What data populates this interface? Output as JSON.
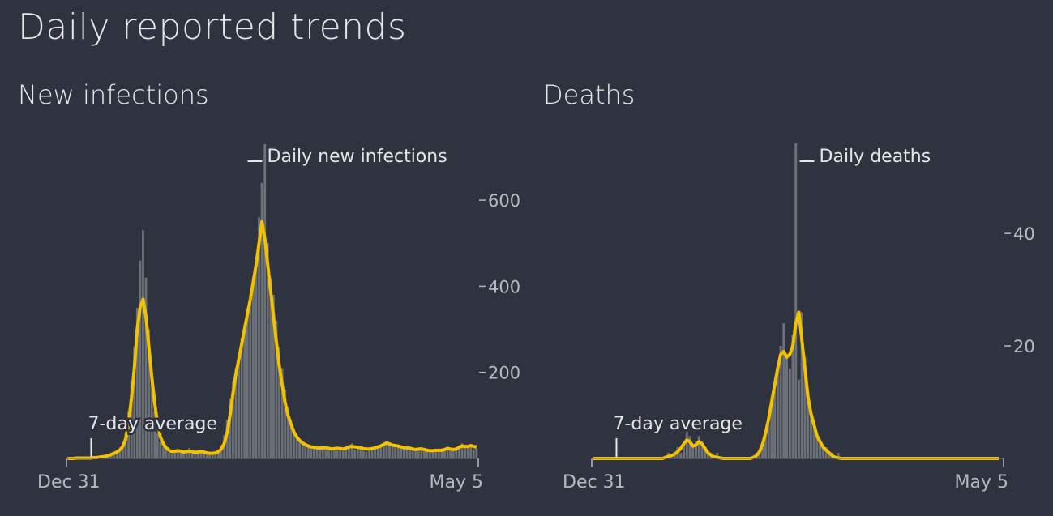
{
  "page": {
    "title": "Daily reported trends"
  },
  "colors": {
    "background": "#2e333f",
    "bars": "#6c7178",
    "average_line": "#f2c100",
    "text": "#e6e6e6",
    "axis_text": "#b7bac0"
  },
  "chart_data": [
    {
      "type": "bar",
      "title": "New infections",
      "x_start_label": "Dec 31",
      "x_end_label": "May 5",
      "yticks": [
        200,
        400,
        600
      ],
      "ylim": [
        0,
        745
      ],
      "bar_series_label": "Daily new infections",
      "average_label": "7-day average",
      "series": [
        {
          "name": "Daily new infections",
          "values": [
            0,
            1,
            0,
            0,
            2,
            1,
            0,
            3,
            1,
            2,
            0,
            5,
            4,
            8,
            6,
            10,
            12,
            15,
            22,
            30,
            60,
            110,
            180,
            260,
            350,
            460,
            530,
            420,
            300,
            180,
            110,
            60,
            40,
            28,
            20,
            14,
            10,
            18,
            22,
            15,
            10,
            18,
            24,
            16,
            12,
            15,
            20,
            14,
            10,
            12,
            8,
            14,
            20,
            30,
            55,
            90,
            140,
            180,
            210,
            240,
            280,
            310,
            350,
            380,
            420,
            470,
            560,
            640,
            730,
            500,
            420,
            380,
            320,
            260,
            210,
            160,
            120,
            90,
            70,
            55,
            45,
            36,
            30,
            28,
            24,
            26,
            22,
            20,
            25,
            28,
            22,
            18,
            22,
            26,
            20,
            18,
            22,
            30,
            35,
            20,
            25,
            22,
            18,
            16,
            20,
            22,
            26,
            30,
            28,
            35,
            40,
            32,
            28,
            34,
            30,
            25,
            22,
            28,
            24,
            20,
            18,
            22,
            26,
            20,
            16,
            14,
            18,
            22,
            20,
            16,
            24,
            28,
            20,
            18,
            22,
            30,
            35,
            26,
            28,
            32,
            22,
            24
          ]
        },
        {
          "name": "7-day average",
          "values": [
            0,
            0,
            0,
            1,
            1,
            1,
            1,
            1,
            1,
            2,
            2,
            3,
            4,
            5,
            7,
            9,
            12,
            15,
            20,
            28,
            45,
            80,
            140,
            210,
            300,
            350,
            370,
            330,
            260,
            190,
            130,
            80,
            50,
            34,
            25,
            19,
            16,
            17,
            18,
            17,
            15,
            16,
            17,
            16,
            14,
            15,
            16,
            15,
            13,
            12,
            12,
            13,
            16,
            22,
            35,
            60,
            100,
            150,
            195,
            230,
            265,
            300,
            335,
            370,
            410,
            450,
            500,
            550,
            510,
            450,
            390,
            330,
            270,
            215,
            170,
            130,
            100,
            80,
            62,
            50,
            42,
            36,
            32,
            29,
            27,
            26,
            25,
            24,
            25,
            25,
            24,
            22,
            23,
            24,
            23,
            22,
            24,
            27,
            28,
            27,
            26,
            25,
            23,
            22,
            22,
            23,
            25,
            27,
            29,
            33,
            36,
            34,
            31,
            30,
            29,
            27,
            25,
            25,
            24,
            22,
            21,
            22,
            22,
            21,
            19,
            18,
            18,
            19,
            19,
            19,
            21,
            23,
            22,
            21,
            22,
            26,
            29,
            28,
            28,
            30,
            28,
            27
          ]
        }
      ]
    },
    {
      "type": "bar",
      "title": "Deaths",
      "x_start_label": "Dec 31",
      "x_end_label": "May 5",
      "yticks": [
        20,
        40
      ],
      "ylim": [
        0,
        57
      ],
      "bar_series_label": "Daily deaths",
      "average_label": "7-day average",
      "series": [
        {
          "name": "Daily deaths",
          "values": [
            0,
            0,
            0,
            0,
            0,
            0,
            0,
            0,
            0,
            0,
            0,
            0,
            0,
            0,
            0,
            0,
            0,
            0,
            0,
            0,
            0,
            0,
            0,
            0,
            0,
            1,
            0,
            1,
            2,
            1,
            3,
            5,
            4,
            2,
            3,
            4,
            3,
            2,
            1,
            1,
            0,
            1,
            0,
            0,
            0,
            0,
            0,
            0,
            0,
            0,
            0,
            0,
            0,
            0,
            1,
            1,
            2,
            4,
            6,
            9,
            12,
            16,
            20,
            24,
            18,
            16,
            22,
            56,
            14,
            26,
            18,
            12,
            8,
            6,
            4,
            3,
            2,
            2,
            1,
            1,
            0,
            1,
            0,
            0,
            0,
            0,
            0,
            0,
            0,
            0,
            0,
            0,
            0,
            0,
            0,
            0,
            0,
            0,
            0,
            0,
            0,
            0,
            0,
            0,
            0,
            0,
            0,
            0,
            0,
            0,
            0,
            0,
            0,
            0,
            0,
            0,
            0,
            0,
            0,
            0,
            0,
            0,
            0,
            0,
            0,
            0,
            0,
            0,
            0,
            0,
            0,
            0,
            0,
            0,
            0,
            0
          ]
        },
        {
          "name": "7-day average",
          "values": [
            0,
            0,
            0,
            0,
            0,
            0,
            0,
            0,
            0,
            0,
            0,
            0,
            0,
            0,
            0,
            0,
            0,
            0,
            0,
            0,
            0,
            0,
            0,
            0,
            0.2,
            0.4,
            0.5,
            0.8,
            1.2,
            1.8,
            2.6,
            3.3,
            3.0,
            2.2,
            2.4,
            3.0,
            2.6,
            1.8,
            1.0,
            0.6,
            0.3,
            0.2,
            0.1,
            0,
            0,
            0,
            0,
            0,
            0,
            0,
            0,
            0,
            0,
            0.2,
            0.5,
            1.2,
            2.5,
            4.5,
            7,
            10,
            13,
            16,
            18.5,
            19,
            18,
            18.5,
            20,
            24,
            26,
            21,
            16,
            11,
            8,
            6,
            4,
            3,
            2,
            1.5,
            1,
            0.5,
            0.2,
            0.1,
            0,
            0,
            0,
            0,
            0,
            0,
            0,
            0,
            0,
            0,
            0,
            0,
            0,
            0,
            0,
            0,
            0,
            0,
            0,
            0,
            0,
            0,
            0,
            0,
            0,
            0,
            0,
            0,
            0,
            0,
            0,
            0,
            0,
            0,
            0,
            0,
            0,
            0,
            0,
            0,
            0,
            0,
            0,
            0,
            0,
            0,
            0,
            0,
            0,
            0,
            0,
            0,
            0
          ]
        }
      ]
    }
  ]
}
